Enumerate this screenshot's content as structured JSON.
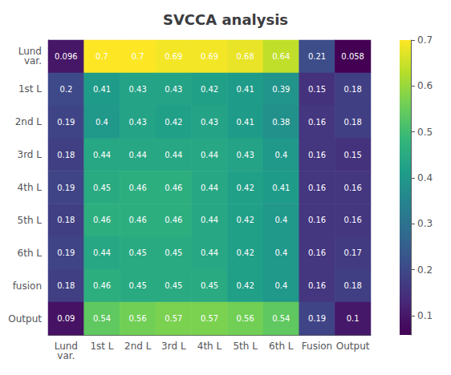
{
  "chart_data": {
    "type": "heatmap",
    "title": "SVCCA analysis",
    "x": [
      "Lund\nvar.",
      "1st L",
      "2nd L",
      "3rd L",
      "4th L",
      "5th L",
      "6th L",
      "Fusion",
      "Output"
    ],
    "y": [
      "Lund\nvar.",
      "1st L",
      "2nd L",
      "3rd L",
      "4th L",
      "5th L",
      "6th L",
      "fusion",
      "Output"
    ],
    "values": [
      [
        0.096,
        0.7,
        0.7,
        0.69,
        0.69,
        0.68,
        0.64,
        0.21,
        0.058
      ],
      [
        0.2,
        0.41,
        0.43,
        0.43,
        0.42,
        0.41,
        0.39,
        0.15,
        0.18
      ],
      [
        0.19,
        0.4,
        0.43,
        0.42,
        0.43,
        0.41,
        0.38,
        0.16,
        0.18
      ],
      [
        0.18,
        0.44,
        0.44,
        0.44,
        0.44,
        0.43,
        0.4,
        0.16,
        0.15
      ],
      [
        0.19,
        0.45,
        0.46,
        0.46,
        0.44,
        0.42,
        0.41,
        0.16,
        0.16
      ],
      [
        0.18,
        0.46,
        0.46,
        0.46,
        0.44,
        0.42,
        0.4,
        0.16,
        0.16
      ],
      [
        0.19,
        0.44,
        0.45,
        0.45,
        0.44,
        0.42,
        0.4,
        0.16,
        0.17
      ],
      [
        0.18,
        0.46,
        0.45,
        0.45,
        0.45,
        0.42,
        0.4,
        0.16,
        0.18
      ],
      [
        0.09,
        0.54,
        0.56,
        0.57,
        0.57,
        0.56,
        0.54,
        0.19,
        0.1
      ]
    ],
    "data_labels": true,
    "color": "viridis",
    "color_range": [
      0.058,
      0.7
    ],
    "color_ticks": [
      0.1,
      0.2,
      0.3,
      0.4,
      0.5,
      0.6,
      0.7
    ]
  }
}
